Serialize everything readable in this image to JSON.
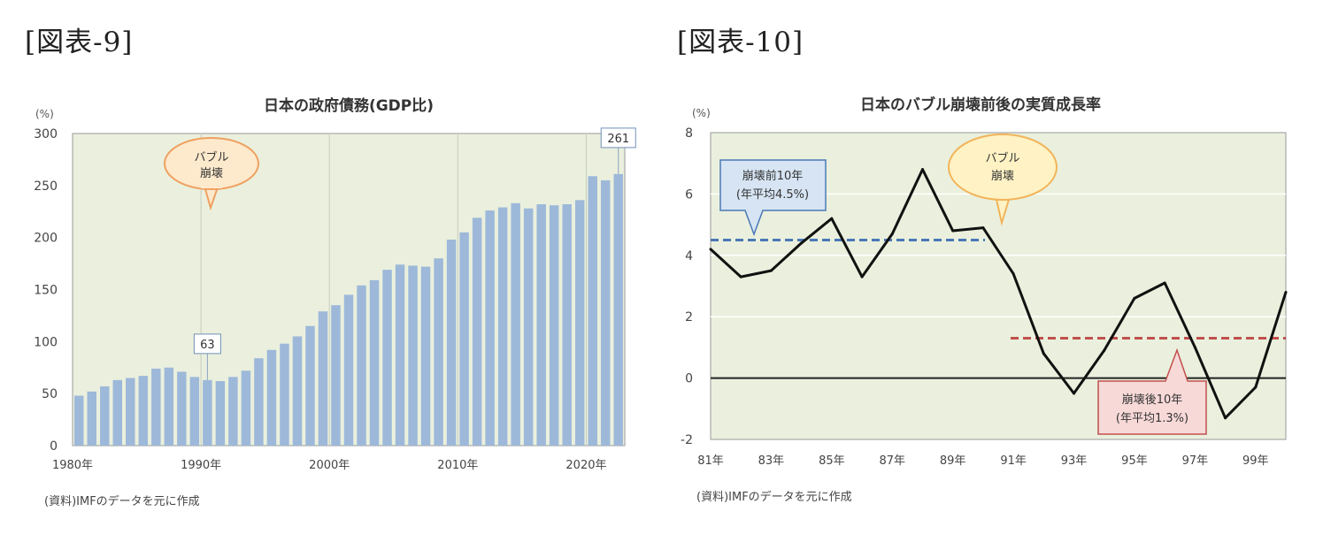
{
  "figures": {
    "left_label": "[図表-9]",
    "right_label": "[図表-10]",
    "left_source": "(資料)IMFのデータを元に作成",
    "right_source": "(資料)IMFのデータを元に作成"
  },
  "colors": {
    "plot_bg": "#eaf0dd",
    "bar": "#9db8d9",
    "line": "#111111",
    "pre_avg": "#4a78b6",
    "post_avg": "#c0504d",
    "bubble_bg": "#fde9cc",
    "bubble_border": "#f0a060",
    "bubble2_bg": "#fff2c4",
    "bubble2_border": "#f2b45a",
    "callout_blue_bg": "#d6e4f3",
    "callout_blue_border": "#4a78b6",
    "callout_red_bg": "#f7d9d8",
    "callout_red_border": "#c0504d"
  },
  "chart_data": [
    {
      "type": "bar",
      "title": "日本の政府債務(GDP比)",
      "ylabel": "(%)",
      "xlabel": "",
      "ylim": [
        0,
        300
      ],
      "yticks": [
        0,
        50,
        100,
        150,
        200,
        250,
        300
      ],
      "xtick_labels": [
        "1980年",
        "1990年",
        "2000年",
        "2010年",
        "2020年"
      ],
      "categories": [
        1980,
        1981,
        1982,
        1983,
        1984,
        1985,
        1986,
        1987,
        1988,
        1989,
        1990,
        1991,
        1992,
        1993,
        1994,
        1995,
        1996,
        1997,
        1998,
        1999,
        2000,
        2001,
        2002,
        2003,
        2004,
        2005,
        2006,
        2007,
        2008,
        2009,
        2010,
        2011,
        2012,
        2013,
        2014,
        2015,
        2016,
        2017,
        2018,
        2019,
        2020,
        2021,
        2022
      ],
      "values": [
        48,
        52,
        57,
        63,
        65,
        67,
        74,
        75,
        71,
        66,
        63,
        62,
        66,
        72,
        84,
        92,
        98,
        105,
        115,
        129,
        135,
        145,
        154,
        159,
        169,
        174,
        173,
        172,
        180,
        198,
        205,
        219,
        226,
        229,
        233,
        228,
        232,
        231,
        232,
        236,
        259,
        255,
        261
      ],
      "data_labels": [
        {
          "year": 1990,
          "text": "63"
        },
        {
          "year": 2022,
          "text": "261"
        }
      ],
      "annotations": [
        {
          "text": [
            "バブル",
            "崩壊"
          ],
          "year": 1990
        }
      ],
      "grid": "vertical"
    },
    {
      "type": "line",
      "title": "日本のバブル崩壊前後の実質成長率",
      "ylabel": "(%)",
      "xlabel": "",
      "ylim": [
        -2,
        8
      ],
      "yticks": [
        -2,
        0,
        2,
        4,
        6,
        8
      ],
      "xtick_labels": [
        "81年",
        "83年",
        "85年",
        "87年",
        "89年",
        "91年",
        "93年",
        "95年",
        "97年",
        "99年"
      ],
      "x": [
        1981,
        1982,
        1983,
        1984,
        1985,
        1986,
        1987,
        1988,
        1989,
        1990,
        1991,
        1992,
        1993,
        1994,
        1995,
        1996,
        1997,
        1998,
        1999,
        2000
      ],
      "series": [
        {
          "values": [
            4.2,
            3.3,
            3.5,
            4.4,
            5.2,
            3.3,
            4.7,
            6.8,
            4.8,
            4.9,
            3.4,
            0.8,
            -0.5,
            0.9,
            2.6,
            3.1,
            1.0,
            -1.3,
            -0.3,
            2.8
          ]
        }
      ],
      "reference_lines": [
        {
          "value": 4.5,
          "from": 1981,
          "to": 1990,
          "style": "dashed"
        },
        {
          "value": 1.3,
          "from": 1991,
          "to": 2000,
          "style": "dashed"
        }
      ],
      "annotations": [
        {
          "text": [
            "崩壊前10年",
            "(年平均4.5%)"
          ]
        },
        {
          "text": [
            "バブル",
            "崩壊"
          ]
        },
        {
          "text": [
            "崩壊後10年",
            "(年平均1.3%)"
          ]
        }
      ],
      "grid": "horizontal"
    }
  ]
}
